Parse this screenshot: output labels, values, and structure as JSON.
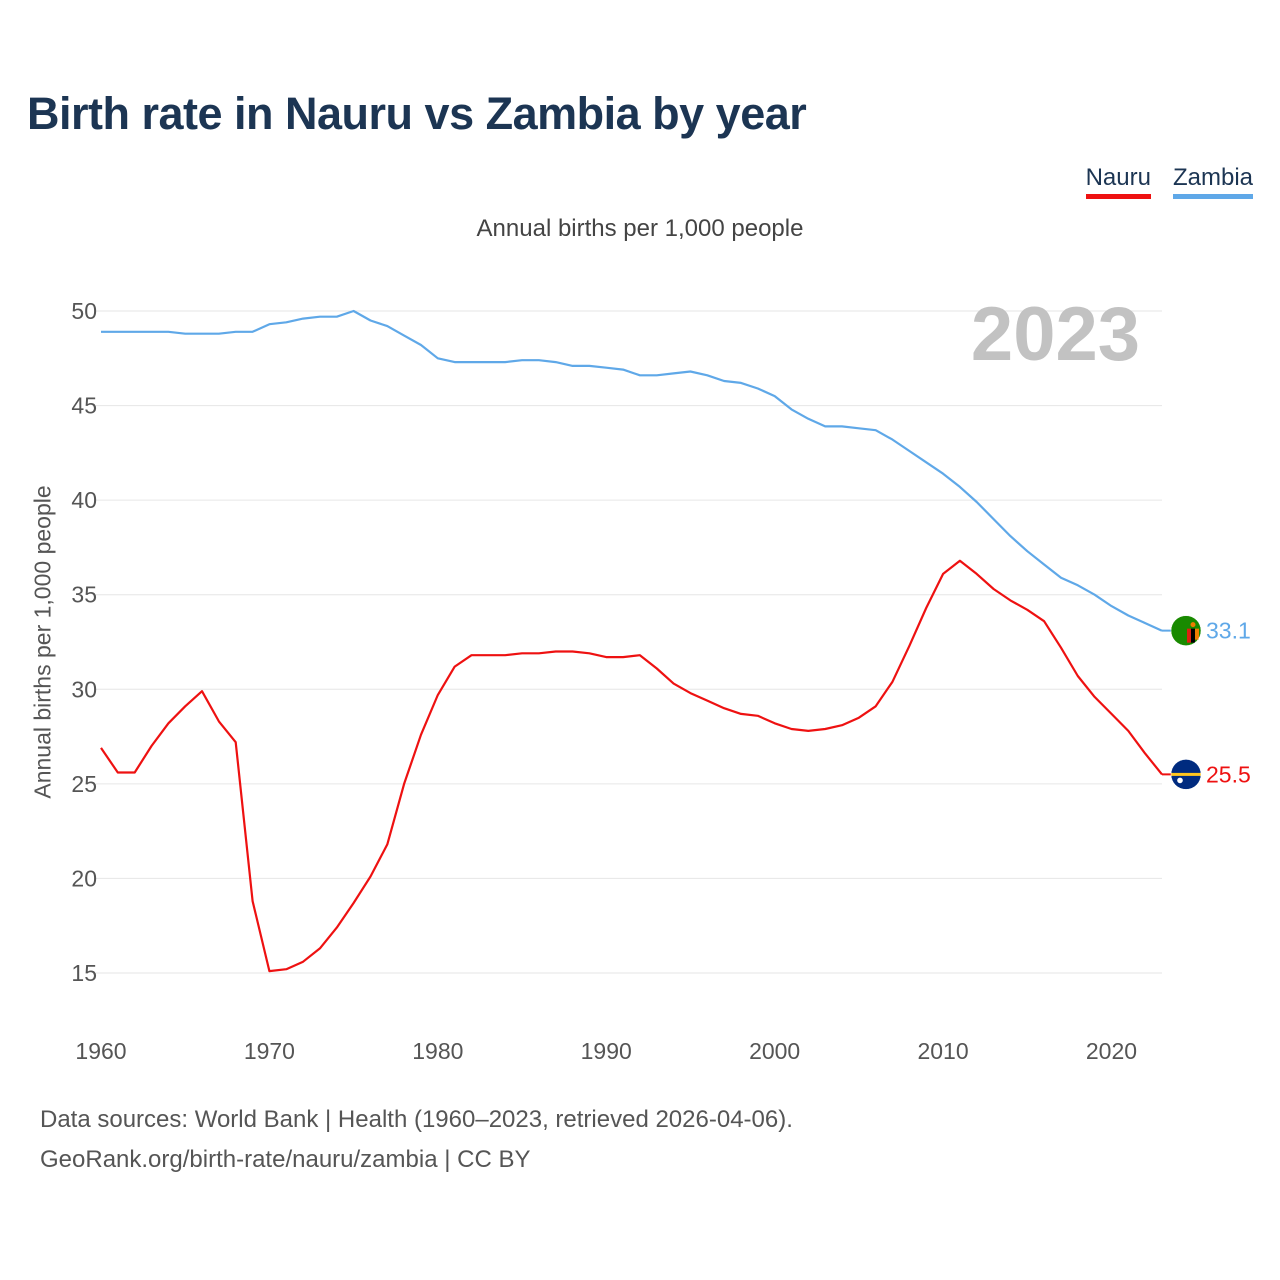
{
  "title": "Birth rate in Nauru vs Zambia by year",
  "subtitle": "Annual births per 1,000 people",
  "year_label": "2023",
  "legend": [
    {
      "name": "Nauru",
      "color": "#ee1111"
    },
    {
      "name": "Zambia",
      "color": "#5fa8e8"
    }
  ],
  "footer": {
    "line1": "Data sources: World Bank | Health (1960–2023, retrieved 2026-04-06).",
    "line2": "GeoRank.org/birth-rate/nauru/zambia | CC BY"
  },
  "chart_data": {
    "type": "line",
    "title": "Birth rate in Nauru vs Zambia by year",
    "xlabel": "",
    "ylabel": "Annual births per 1,000 people",
    "xlim": [
      1960,
      2023
    ],
    "ylim": [
      12.5,
      52
    ],
    "yticks": [
      15,
      20,
      25,
      30,
      35,
      40,
      45,
      50
    ],
    "xticks": [
      1960,
      1970,
      1980,
      1990,
      2000,
      2010,
      2020
    ],
    "grid": true,
    "legend_position": "top-right",
    "x": [
      1960,
      1961,
      1962,
      1963,
      1964,
      1965,
      1966,
      1967,
      1968,
      1969,
      1970,
      1971,
      1972,
      1973,
      1974,
      1975,
      1976,
      1977,
      1978,
      1979,
      1980,
      1981,
      1982,
      1983,
      1984,
      1985,
      1986,
      1987,
      1988,
      1989,
      1990,
      1991,
      1992,
      1993,
      1994,
      1995,
      1996,
      1997,
      1998,
      1999,
      2000,
      2001,
      2002,
      2003,
      2004,
      2005,
      2006,
      2007,
      2008,
      2009,
      2010,
      2011,
      2012,
      2013,
      2014,
      2015,
      2016,
      2017,
      2018,
      2019,
      2020,
      2021,
      2022,
      2023
    ],
    "series": [
      {
        "name": "Zambia",
        "color": "#5fa8e8",
        "end_label": "33.1",
        "flag": "zambia-flag",
        "values": [
          48.9,
          48.9,
          48.9,
          48.9,
          48.9,
          48.8,
          48.8,
          48.8,
          48.9,
          48.9,
          49.3,
          49.4,
          49.6,
          49.7,
          49.7,
          50.0,
          49.5,
          49.2,
          48.7,
          48.2,
          47.5,
          47.3,
          47.3,
          47.3,
          47.3,
          47.4,
          47.4,
          47.3,
          47.1,
          47.1,
          47.0,
          46.9,
          46.6,
          46.6,
          46.7,
          46.8,
          46.6,
          46.3,
          46.2,
          45.9,
          45.5,
          44.8,
          44.3,
          43.9,
          43.9,
          43.8,
          43.7,
          43.2,
          42.6,
          42.0,
          41.4,
          40.7,
          39.9,
          39.0,
          38.1,
          37.3,
          36.6,
          35.9,
          35.5,
          35.0,
          34.4,
          33.9,
          33.5,
          33.1
        ]
      },
      {
        "name": "Nauru",
        "color": "#ee1111",
        "end_label": "25.5",
        "flag": "nauru-flag",
        "values": [
          26.9,
          25.6,
          25.6,
          27.0,
          28.2,
          29.1,
          29.9,
          28.3,
          27.2,
          18.8,
          15.1,
          15.2,
          15.6,
          16.3,
          17.4,
          18.7,
          20.1,
          21.8,
          25.0,
          27.6,
          29.7,
          31.2,
          31.8,
          31.8,
          31.8,
          31.9,
          31.9,
          32.0,
          32.0,
          31.9,
          31.7,
          31.7,
          31.8,
          31.1,
          30.3,
          29.8,
          29.4,
          29.0,
          28.7,
          28.6,
          28.2,
          27.9,
          27.8,
          27.9,
          28.1,
          28.5,
          29.1,
          30.4,
          32.3,
          34.3,
          36.1,
          36.8,
          36.1,
          35.3,
          34.7,
          34.2,
          33.6,
          32.2,
          30.7,
          29.6,
          28.7,
          27.8,
          26.6,
          25.5
        ]
      }
    ]
  }
}
